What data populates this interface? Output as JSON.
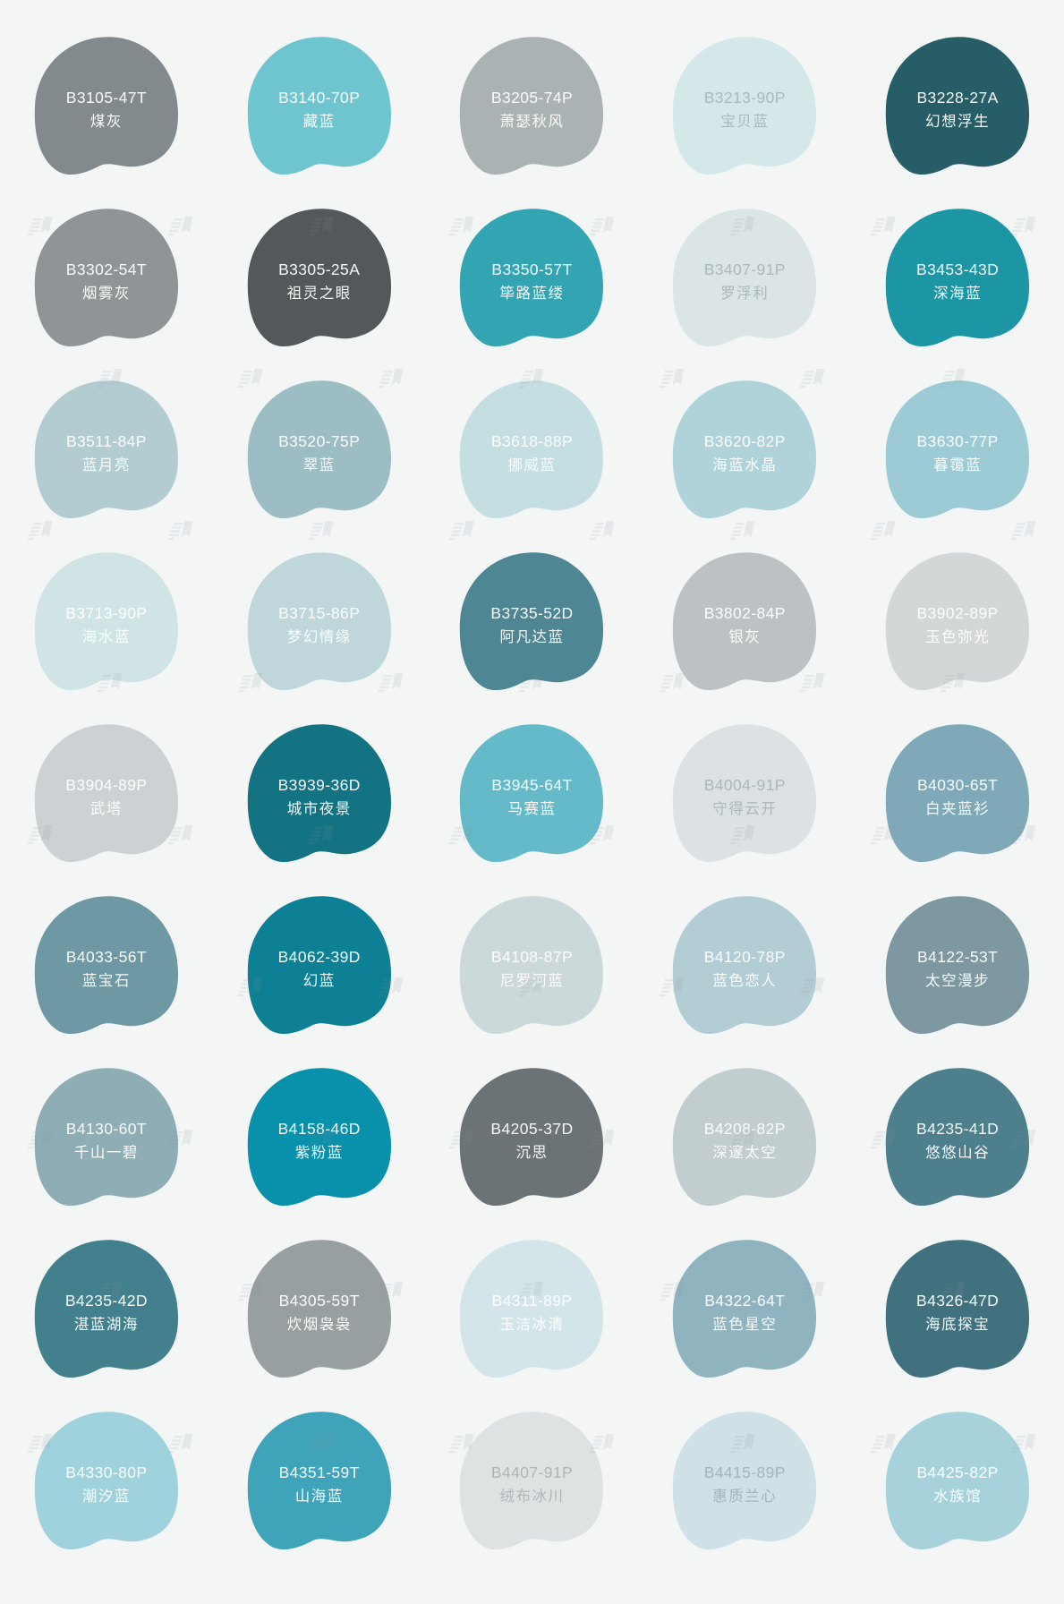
{
  "page": {
    "background": "#f4f6f6"
  },
  "palette": {
    "swatches": [
      {
        "code": "B3105-47T",
        "name": "煤灰",
        "color": "#838a8d",
        "text": "light"
      },
      {
        "code": "B3140-70P",
        "name": "藏蓝",
        "color": "#6fc5cf",
        "text": "light"
      },
      {
        "code": "B3205-74P",
        "name": "萧瑟秋风",
        "color": "#aab2b4",
        "text": "light"
      },
      {
        "code": "B3213-90P",
        "name": "宝贝蓝",
        "color": "#d5e8e9",
        "text": "dim"
      },
      {
        "code": "B3228-27A",
        "name": "幻想浮生",
        "color": "#275d66",
        "text": "light"
      },
      {
        "code": "B3302-54T",
        "name": "烟雾灰",
        "color": "#8f9597",
        "text": "light"
      },
      {
        "code": "B3305-25A",
        "name": "祖灵之眼",
        "color": "#53585a",
        "text": "light"
      },
      {
        "code": "B3350-57T",
        "name": "筚路蓝缕",
        "color": "#32a4b2",
        "text": "light"
      },
      {
        "code": "B3407-91P",
        "name": "罗浮利",
        "color": "#dce5e6",
        "text": "dim"
      },
      {
        "code": "B3453-43D",
        "name": "深海蓝",
        "color": "#1c95a4",
        "text": "light"
      },
      {
        "code": "B3511-84P",
        "name": "蓝月亮",
        "color": "#b3ccd2",
        "text": "light"
      },
      {
        "code": "B3520-75P",
        "name": "翠蓝",
        "color": "#9dbdc5",
        "text": "light"
      },
      {
        "code": "B3618-88P",
        "name": "挪威蓝",
        "color": "#c5dee2",
        "text": "light"
      },
      {
        "code": "B3620-82P",
        "name": "海蓝水晶",
        "color": "#afd3d9",
        "text": "light"
      },
      {
        "code": "B3630-77P",
        "name": "暮霭蓝",
        "color": "#9ccbd6",
        "text": "light"
      },
      {
        "code": "B3713-90P",
        "name": "海水蓝",
        "color": "#d0e4e6",
        "text": "light"
      },
      {
        "code": "B3715-86P",
        "name": "梦幻情缘",
        "color": "#bfd7db",
        "text": "light"
      },
      {
        "code": "B3735-52D",
        "name": "阿凡达蓝",
        "color": "#4e8693",
        "text": "light"
      },
      {
        "code": "B3802-84P",
        "name": "银灰",
        "color": "#bcc2c3",
        "text": "light"
      },
      {
        "code": "B3902-89P",
        "name": "玉色弥光",
        "color": "#d3d7d7",
        "text": "light"
      },
      {
        "code": "B3904-89P",
        "name": "武塔",
        "color": "#ccd2d3",
        "text": "light"
      },
      {
        "code": "B3939-36D",
        "name": "城市夜景",
        "color": "#137382",
        "text": "light"
      },
      {
        "code": "B3945-64T",
        "name": "马赛蓝",
        "color": "#64bac9",
        "text": "light"
      },
      {
        "code": "B4004-91P",
        "name": "守得云开",
        "color": "#dce2e3",
        "text": "dim"
      },
      {
        "code": "B4030-65T",
        "name": "白夹蓝衫",
        "color": "#7fa9b8",
        "text": "light"
      },
      {
        "code": "B4033-56T",
        "name": "蓝宝石",
        "color": "#6e99a4",
        "text": "light"
      },
      {
        "code": "B4062-39D",
        "name": "幻蓝",
        "color": "#0e8095",
        "text": "light"
      },
      {
        "code": "B4108-87P",
        "name": "尼罗河蓝",
        "color": "#ccd9da",
        "text": "light"
      },
      {
        "code": "B4120-78P",
        "name": "蓝色恋人",
        "color": "#b3cdd4",
        "text": "light"
      },
      {
        "code": "B4122-53T",
        "name": "太空漫步",
        "color": "#7d98a0",
        "text": "light"
      },
      {
        "code": "B4130-60T",
        "name": "千山一碧",
        "color": "#8fadb5",
        "text": "light"
      },
      {
        "code": "B4158-46D",
        "name": "紫粉蓝",
        "color": "#0991ab",
        "text": "light"
      },
      {
        "code": "B4205-37D",
        "name": "沉思",
        "color": "#6b7376",
        "text": "light"
      },
      {
        "code": "B4208-82P",
        "name": "深邃太空",
        "color": "#c2cdd0",
        "text": "light"
      },
      {
        "code": "B4235-41D",
        "name": "悠悠山谷",
        "color": "#4d7f8d",
        "text": "light"
      },
      {
        "code": "B4235-42D",
        "name": "湛蓝湖海",
        "color": "#42808d",
        "text": "light"
      },
      {
        "code": "B4305-59T",
        "name": "炊烟袅袅",
        "color": "#989fa1",
        "text": "light"
      },
      {
        "code": "B4311-89P",
        "name": "玉洁冰清",
        "color": "#d4e5ea",
        "text": "light"
      },
      {
        "code": "B4322-64T",
        "name": "蓝色星空",
        "color": "#8fb3bf",
        "text": "light"
      },
      {
        "code": "B4326-47D",
        "name": "海底探宝",
        "color": "#41717e",
        "text": "light"
      },
      {
        "code": "B4330-80P",
        "name": "潮汐蓝",
        "color": "#a0d2de",
        "text": "light"
      },
      {
        "code": "B4351-59T",
        "name": "山海蓝",
        "color": "#3fa3b9",
        "text": "light"
      },
      {
        "code": "B4407-91P",
        "name": "绒布冰川",
        "color": "#dfe2e2",
        "text": "dim"
      },
      {
        "code": "B4415-89P",
        "name": "惠质兰心",
        "color": "#cfe0e6",
        "text": "dim"
      },
      {
        "code": "B4425-82P",
        "name": "水族馆",
        "color": "#a7d2dc",
        "text": "light"
      }
    ]
  }
}
